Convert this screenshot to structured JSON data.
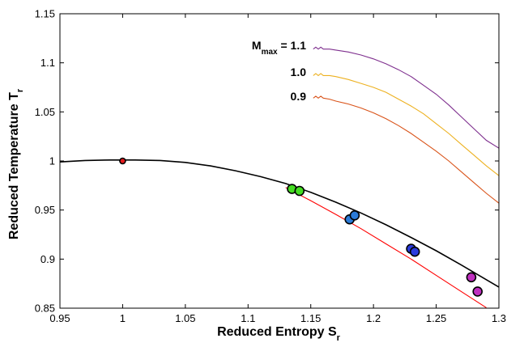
{
  "chart_data": {
    "type": "line",
    "title": "",
    "xlabel": "Reduced Entropy S",
    "xlabel_sub": "r",
    "ylabel": "Reduced Temperature T",
    "ylabel_sub": "r",
    "xlim": [
      0.95,
      1.3
    ],
    "ylim": [
      0.85,
      1.15
    ],
    "xticks": [
      "0.95",
      "1",
      "1.05",
      "1.1",
      "1.15",
      "1.2",
      "1.25",
      "1.3"
    ],
    "yticks": [
      "0.85",
      "0.9",
      "0.95",
      "1",
      "1.05",
      "1.1",
      "1.15"
    ],
    "grid": false,
    "legend": "none",
    "annotations": [
      {
        "main": "M",
        "sub": "max",
        "rest": " = 1.1"
      },
      {
        "text": "1.0"
      },
      {
        "text": "0.9"
      }
    ],
    "series": [
      {
        "color": "#000000",
        "kind": "line",
        "x": [
          0.95,
          0.97,
          0.99,
          1.0,
          1.01,
          1.03,
          1.05,
          1.07,
          1.09,
          1.11,
          1.13,
          1.15,
          1.17,
          1.19,
          1.21,
          1.23,
          1.25,
          1.27,
          1.29,
          1.3
        ],
        "y": [
          0.999,
          1.0005,
          1.001,
          1.001,
          1.001,
          1.0005,
          0.9985,
          0.995,
          0.99,
          0.984,
          0.977,
          0.968,
          0.958,
          0.947,
          0.935,
          0.922,
          0.9085,
          0.894,
          0.879,
          0.8715
        ]
      },
      {
        "color": "#7e2f8e",
        "kind": "line",
        "x": [
          1.152,
          1.154,
          1.156,
          1.158,
          1.16,
          1.165,
          1.17,
          1.18,
          1.19,
          1.2,
          1.21,
          1.22,
          1.23,
          1.24,
          1.25,
          1.26,
          1.27,
          1.28,
          1.29,
          1.3
        ],
        "y": [
          1.114,
          1.116,
          1.114,
          1.116,
          1.114,
          1.114,
          1.113,
          1.111,
          1.108,
          1.104,
          1.099,
          1.093,
          1.086,
          1.077,
          1.068,
          1.057,
          1.045,
          1.033,
          1.021,
          1.013
        ]
      },
      {
        "color": "#edb120",
        "kind": "line",
        "x": [
          1.152,
          1.154,
          1.156,
          1.158,
          1.16,
          1.165,
          1.17,
          1.18,
          1.19,
          1.2,
          1.21,
          1.22,
          1.23,
          1.24,
          1.25,
          1.26,
          1.27,
          1.28,
          1.29,
          1.3
        ],
        "y": [
          1.087,
          1.089,
          1.087,
          1.089,
          1.087,
          1.087,
          1.086,
          1.083,
          1.079,
          1.075,
          1.07,
          1.063,
          1.056,
          1.048,
          1.038,
          1.028,
          1.017,
          1.006,
          0.995,
          0.985
        ]
      },
      {
        "color": "#d95319",
        "kind": "line",
        "x": [
          1.152,
          1.154,
          1.156,
          1.158,
          1.16,
          1.165,
          1.17,
          1.18,
          1.19,
          1.2,
          1.21,
          1.22,
          1.23,
          1.24,
          1.25,
          1.26,
          1.27,
          1.28,
          1.29,
          1.3
        ],
        "y": [
          1.064,
          1.066,
          1.064,
          1.066,
          1.064,
          1.063,
          1.061,
          1.058,
          1.054,
          1.049,
          1.043,
          1.036,
          1.028,
          1.019,
          1.01,
          1.0,
          0.989,
          0.978,
          0.967,
          0.957
        ]
      },
      {
        "color": "#ff0000",
        "kind": "line",
        "x": [
          1.13,
          1.15,
          1.17,
          1.19,
          1.21,
          1.23,
          1.25,
          1.27,
          1.29
        ],
        "y": [
          0.973,
          0.9595,
          0.9455,
          0.931,
          0.9155,
          0.9,
          0.8835,
          0.867,
          0.8505
        ]
      },
      {
        "color": "#e31a1c",
        "kind": "points",
        "r": 3.5,
        "x": [
          1.0
        ],
        "y": [
          1.0
        ]
      },
      {
        "color": "#44dd22",
        "kind": "points",
        "r": 5.5,
        "x": [
          1.135,
          1.141
        ],
        "y": [
          0.9715,
          0.9695
        ]
      },
      {
        "color": "#2b7bd8",
        "kind": "points",
        "r": 5.5,
        "x": [
          1.181,
          1.185
        ],
        "y": [
          0.9405,
          0.9445
        ]
      },
      {
        "color": "#2a3bdc",
        "kind": "points",
        "r": 5.5,
        "x": [
          1.23,
          1.233
        ],
        "y": [
          0.9105,
          0.9075
        ]
      },
      {
        "color": "#c030c0",
        "kind": "points",
        "r": 5.5,
        "x": [
          1.278,
          1.283
        ],
        "y": [
          0.8815,
          0.867
        ]
      }
    ]
  }
}
